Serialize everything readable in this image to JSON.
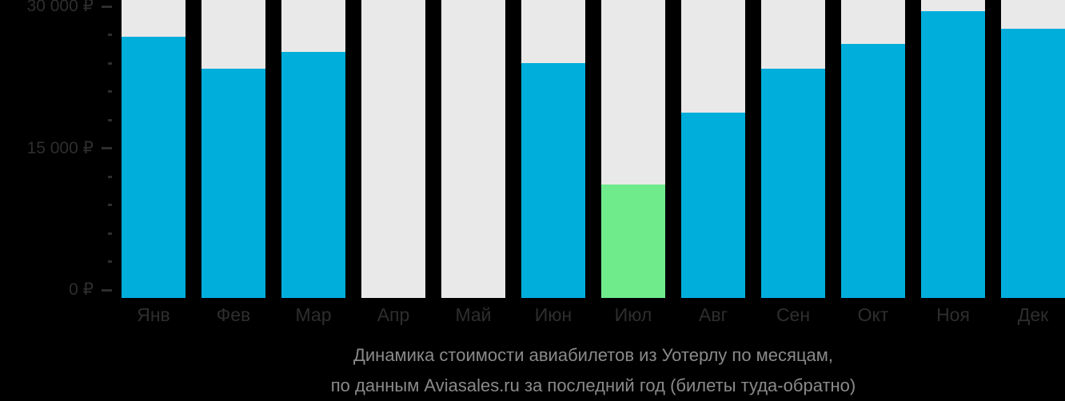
{
  "chart_data": {
    "type": "bar",
    "title": "Динамика стоимости авиабилетов из Уотерлу по месяцам, по данным Aviasales.ru за последний год (билеты туда-обратно)",
    "title_lines": {
      "line1": "Динамика стоимости авиабилетов из Уотерлу по месяцам,",
      "line2": "по данным Aviasales.ru за последний год (билеты туда-обратно)"
    },
    "categories": [
      "Янв",
      "Фев",
      "Мар",
      "Апр",
      "Май",
      "Июн",
      "Июл",
      "Авг",
      "Сен",
      "Окт",
      "Ноя",
      "Дек"
    ],
    "values": [
      26900,
      23600,
      25300,
      null,
      null,
      24200,
      11700,
      19100,
      23600,
      26100,
      29500,
      27700
    ],
    "highlight_index": 6,
    "currency": "₽",
    "y_axis": {
      "min": 0,
      "max": 30000,
      "major_tick_step": 15000,
      "minor_tick_step": 3000,
      "labels": [
        "0 ₽",
        "15 000 ₽",
        "30 000 ₽"
      ]
    },
    "legend": null,
    "grid": false,
    "colors": {
      "bar": "#00AEDB",
      "highlight": "#6FEB8C",
      "track": "#E9E9E9",
      "axis_text": "#2E2E2E",
      "title_text": "#8A8A8A",
      "background": "#000000"
    }
  }
}
